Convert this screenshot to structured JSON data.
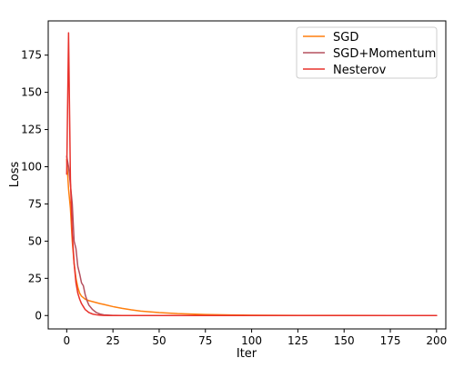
{
  "chart_data": {
    "type": "line",
    "xlabel": "Iter",
    "ylabel": "Loss",
    "xlim": [
      -10,
      205
    ],
    "ylim": [
      -9,
      198
    ],
    "xticks": [
      0,
      25,
      50,
      75,
      100,
      125,
      150,
      175,
      200
    ],
    "yticks": [
      0,
      25,
      50,
      75,
      100,
      125,
      150,
      175
    ],
    "grid": false,
    "legend_position": "top-right",
    "series": [
      {
        "name": "SGD",
        "color": "#ff7f0e",
        "x": [
          0,
          1,
          2,
          3,
          4,
          5,
          6,
          7,
          8,
          10,
          12,
          15,
          18,
          20,
          25,
          30,
          35,
          40,
          50,
          60,
          75,
          90,
          100,
          125,
          150,
          175,
          200
        ],
        "y": [
          105,
          85,
          72,
          50,
          35,
          25,
          19,
          15,
          13,
          11,
          10,
          9,
          8,
          7.5,
          6,
          4.8,
          3.8,
          3.0,
          2.0,
          1.3,
          0.7,
          0.4,
          0.25,
          0.1,
          0.05,
          0.02,
          0.01
        ]
      },
      {
        "name": "SGD+Momentum",
        "color": "#b5505e",
        "x": [
          0,
          1,
          2,
          3,
          4,
          5,
          6,
          7,
          8,
          9,
          10,
          11,
          12,
          14,
          16,
          18,
          20,
          25,
          30,
          50,
          100,
          150,
          200
        ],
        "y": [
          107,
          100,
          88,
          75,
          50,
          45,
          33,
          28,
          22,
          20,
          14,
          10,
          7,
          4,
          2,
          1,
          0.5,
          0.1,
          0,
          0,
          0,
          0,
          0
        ]
      },
      {
        "name": "Nesterov",
        "color": "#e8322c",
        "x": [
          0,
          1,
          2,
          3,
          4,
          5,
          6,
          7,
          8,
          9,
          10,
          11,
          12,
          14,
          16,
          18,
          20,
          25,
          30,
          50,
          100,
          150,
          200
        ],
        "y": [
          95,
          190,
          92,
          55,
          35,
          22,
          15,
          11,
          8,
          6,
          4,
          3,
          2,
          1,
          0.5,
          0.2,
          0.1,
          0,
          0,
          0,
          0,
          0,
          0
        ]
      }
    ]
  }
}
